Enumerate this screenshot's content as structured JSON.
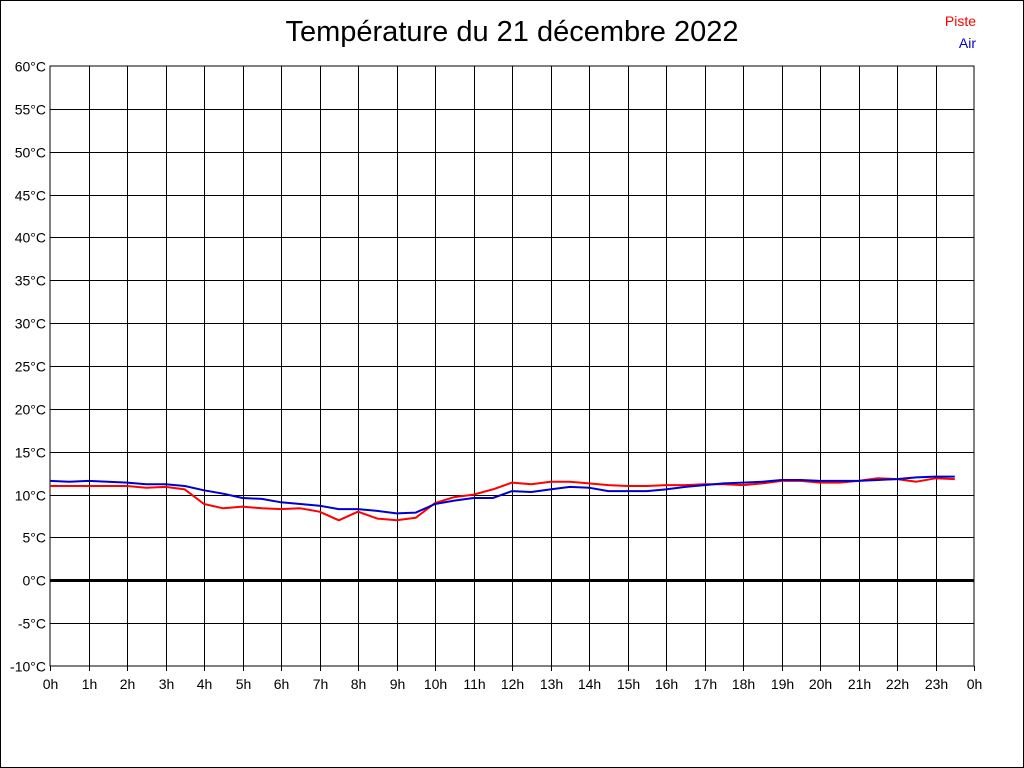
{
  "chart_data": {
    "type": "line",
    "title": "Température du 21 décembre 2022",
    "xlabel": "",
    "ylabel": "",
    "x_tick_labels": [
      "0h",
      "1h",
      "2h",
      "3h",
      "4h",
      "5h",
      "6h",
      "7h",
      "8h",
      "9h",
      "10h",
      "11h",
      "12h",
      "13h",
      "14h",
      "15h",
      "16h",
      "17h",
      "18h",
      "19h",
      "20h",
      "21h",
      "22h",
      "23h",
      "0h"
    ],
    "y_tick_labels": [
      "60°C",
      "55°C",
      "50°C",
      "45°C",
      "40°C",
      "35°C",
      "30°C",
      "25°C",
      "20°C",
      "15°C",
      "10°C",
      "5°C",
      "0°C",
      "-5°C",
      "-10°C"
    ],
    "xlim": [
      0,
      24
    ],
    "ylim": [
      -10,
      60
    ],
    "grid": true,
    "legend_position": "top-right",
    "series": [
      {
        "name": "Piste",
        "color": "#ff0000",
        "x": [
          0,
          0.5,
          1,
          1.5,
          2,
          2.5,
          3,
          3.5,
          4,
          4.5,
          5,
          5.5,
          6,
          6.5,
          7,
          7.5,
          8,
          8.5,
          9,
          9.5,
          10,
          10.5,
          11,
          11.5,
          12,
          12.5,
          13,
          13.5,
          14,
          14.5,
          15,
          15.5,
          16,
          16.5,
          17,
          17.5,
          18,
          18.5,
          19,
          19.5,
          20,
          20.5,
          21,
          21.5,
          22,
          22.5,
          23,
          23.5
        ],
        "values": [
          11.0,
          11.0,
          11.0,
          11.0,
          11.0,
          10.8,
          10.9,
          10.6,
          8.9,
          8.4,
          8.6,
          8.4,
          8.3,
          8.4,
          8.0,
          7.0,
          8.0,
          7.2,
          7.0,
          7.3,
          9.0,
          9.7,
          10.0,
          10.6,
          11.4,
          11.2,
          11.5,
          11.5,
          11.3,
          11.1,
          11.0,
          11.0,
          11.1,
          11.1,
          11.2,
          11.2,
          11.1,
          11.3,
          11.6,
          11.6,
          11.4,
          11.4,
          11.6,
          11.9,
          11.8,
          11.5,
          11.9,
          11.8
        ]
      },
      {
        "name": "Air",
        "color": "#0000cc",
        "x": [
          0,
          0.5,
          1,
          1.5,
          2,
          2.5,
          3,
          3.5,
          4,
          4.5,
          5,
          5.5,
          6,
          6.5,
          7,
          7.5,
          8,
          8.5,
          9,
          9.5,
          10,
          10.5,
          11,
          11.5,
          12,
          12.5,
          13,
          13.5,
          14,
          14.5,
          15,
          15.5,
          16,
          16.5,
          17,
          17.5,
          18,
          18.5,
          19,
          19.5,
          20,
          20.5,
          21,
          21.5,
          22,
          22.5,
          23,
          23.5
        ],
        "values": [
          11.6,
          11.5,
          11.6,
          11.5,
          11.4,
          11.2,
          11.2,
          11.0,
          10.5,
          10.1,
          9.6,
          9.5,
          9.1,
          8.9,
          8.7,
          8.3,
          8.3,
          8.1,
          7.8,
          7.9,
          8.9,
          9.3,
          9.6,
          9.6,
          10.4,
          10.3,
          10.6,
          10.9,
          10.8,
          10.4,
          10.4,
          10.4,
          10.6,
          10.9,
          11.1,
          11.3,
          11.4,
          11.5,
          11.7,
          11.7,
          11.6,
          11.6,
          11.6,
          11.7,
          11.8,
          12.0,
          12.1,
          12.1
        ]
      }
    ]
  }
}
